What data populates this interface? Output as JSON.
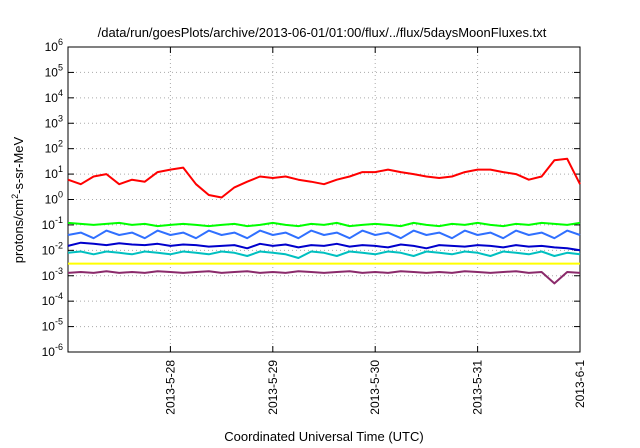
{
  "chart_data": {
    "type": "line",
    "title": "/data/run/goesPlots/archive/2013-06-01/01:00/flux/../flux/5daysMoonFluxes.txt",
    "xlabel": "Coordinated Universal Time (UTC)",
    "ylabel": "protons/cm^2-s-sr-MeV",
    "ylabel_parts": {
      "main": "protons/cm",
      "sup": "2",
      "rest": "-s-sr-MeV"
    },
    "y_scale": "log",
    "ylim": [
      1e-06,
      1000000.0
    ],
    "y_ticks": [
      {
        "exp": -6,
        "base": "10",
        "sup": "-6"
      },
      {
        "exp": -5,
        "base": "10",
        "sup": "-5"
      },
      {
        "exp": -4,
        "base": "10",
        "sup": "-4"
      },
      {
        "exp": -3,
        "base": "10",
        "sup": "-3"
      },
      {
        "exp": -2,
        "base": "10",
        "sup": "-2"
      },
      {
        "exp": -1,
        "base": "10",
        "sup": "-1"
      },
      {
        "exp": 0,
        "base": "10",
        "sup": "0"
      },
      {
        "exp": 1,
        "base": "10",
        "sup": "1"
      },
      {
        "exp": 2,
        "base": "10",
        "sup": "2"
      },
      {
        "exp": 3,
        "base": "10",
        "sup": "3"
      },
      {
        "exp": 4,
        "base": "10",
        "sup": "4"
      },
      {
        "exp": 5,
        "base": "10",
        "sup": "5"
      },
      {
        "exp": 6,
        "base": "10",
        "sup": "6"
      }
    ],
    "x_start": "2013-05-27 00:00",
    "x_end": "2013-06-01 00:00",
    "x_ticks": [
      {
        "label": "2013-5-28",
        "value": "2013-05-28 00:00"
      },
      {
        "label": "2013-5-29",
        "value": "2013-05-29 00:00"
      },
      {
        "label": "2013-5-30",
        "value": "2013-05-30 00:00"
      },
      {
        "label": "2013-5-31",
        "value": "2013-05-31 00:00"
      },
      {
        "label": "2013-6-1",
        "value": "2013-06-01 00:00"
      }
    ],
    "grid": true,
    "x": [
      "2013-05-27 00:00",
      "2013-05-27 03:00",
      "2013-05-27 06:00",
      "2013-05-27 09:00",
      "2013-05-27 12:00",
      "2013-05-27 15:00",
      "2013-05-27 18:00",
      "2013-05-27 21:00",
      "2013-05-28 00:00",
      "2013-05-28 03:00",
      "2013-05-28 06:00",
      "2013-05-28 09:00",
      "2013-05-28 12:00",
      "2013-05-28 15:00",
      "2013-05-28 18:00",
      "2013-05-28 21:00",
      "2013-05-29 00:00",
      "2013-05-29 03:00",
      "2013-05-29 06:00",
      "2013-05-29 09:00",
      "2013-05-29 12:00",
      "2013-05-29 15:00",
      "2013-05-29 18:00",
      "2013-05-29 21:00",
      "2013-05-30 00:00",
      "2013-05-30 03:00",
      "2013-05-30 06:00",
      "2013-05-30 09:00",
      "2013-05-30 12:00",
      "2013-05-30 15:00",
      "2013-05-30 18:00",
      "2013-05-30 21:00",
      "2013-05-31 00:00",
      "2013-05-31 03:00",
      "2013-05-31 06:00",
      "2013-05-31 09:00",
      "2013-05-31 12:00",
      "2013-05-31 15:00",
      "2013-05-31 18:00",
      "2013-05-31 21:00",
      "2013-06-01 00:00"
    ],
    "series": [
      {
        "color": "#ff0000",
        "values": [
          6,
          4,
          8,
          10,
          4,
          6,
          5,
          12,
          15,
          18,
          4,
          1.5,
          1.2,
          3,
          5,
          8,
          7,
          8,
          6,
          5,
          4,
          6,
          8,
          12,
          12,
          15,
          12,
          10,
          8,
          7,
          8,
          12,
          15,
          15,
          12,
          10,
          6,
          8,
          35,
          40,
          4
        ]
      },
      {
        "color": "#00ff00",
        "values": [
          0.12,
          0.11,
          0.1,
          0.11,
          0.12,
          0.1,
          0.11,
          0.09,
          0.1,
          0.11,
          0.1,
          0.09,
          0.1,
          0.11,
          0.09,
          0.1,
          0.12,
          0.1,
          0.09,
          0.11,
          0.1,
          0.12,
          0.09,
          0.1,
          0.11,
          0.1,
          0.09,
          0.12,
          0.1,
          0.09,
          0.11,
          0.1,
          0.12,
          0.1,
          0.09,
          0.11,
          0.1,
          0.12,
          0.11,
          0.1,
          0.12
        ]
      },
      {
        "color": "#3070ff",
        "values": [
          0.04,
          0.05,
          0.03,
          0.06,
          0.04,
          0.05,
          0.03,
          0.06,
          0.04,
          0.05,
          0.03,
          0.06,
          0.04,
          0.05,
          0.03,
          0.06,
          0.04,
          0.05,
          0.03,
          0.06,
          0.04,
          0.05,
          0.03,
          0.06,
          0.04,
          0.05,
          0.03,
          0.06,
          0.04,
          0.05,
          0.03,
          0.06,
          0.04,
          0.05,
          0.03,
          0.06,
          0.04,
          0.05,
          0.03,
          0.06,
          0.04
        ]
      },
      {
        "color": "#0000cc",
        "values": [
          0.015,
          0.02,
          0.018,
          0.016,
          0.019,
          0.017,
          0.016,
          0.018,
          0.015,
          0.017,
          0.016,
          0.014,
          0.015,
          0.016,
          0.012,
          0.018,
          0.015,
          0.017,
          0.013,
          0.016,
          0.015,
          0.018,
          0.014,
          0.016,
          0.015,
          0.013,
          0.017,
          0.015,
          0.012,
          0.016,
          0.015,
          0.014,
          0.016,
          0.015,
          0.013,
          0.016,
          0.014,
          0.015,
          0.013,
          0.012,
          0.01
        ]
      },
      {
        "color": "#00c0c0",
        "values": [
          0.008,
          0.009,
          0.007,
          0.009,
          0.008,
          0.007,
          0.009,
          0.008,
          0.007,
          0.009,
          0.008,
          0.007,
          0.009,
          0.008,
          0.006,
          0.009,
          0.008,
          0.007,
          0.005,
          0.009,
          0.008,
          0.006,
          0.009,
          0.008,
          0.007,
          0.009,
          0.008,
          0.006,
          0.009,
          0.008,
          0.007,
          0.009,
          0.008,
          0.006,
          0.009,
          0.008,
          0.007,
          0.009,
          0.006,
          0.008,
          0.007
        ]
      },
      {
        "color": "#ffff00",
        "values": [
          0.003,
          0.003,
          0.003,
          0.003,
          0.003,
          0.003,
          0.003,
          0.003,
          0.003,
          0.003,
          0.003,
          0.003,
          0.003,
          0.003,
          0.003,
          0.003,
          0.003,
          0.003,
          0.003,
          0.003,
          0.003,
          0.003,
          0.003,
          0.003,
          0.003,
          0.003,
          0.003,
          0.003,
          0.003,
          0.003,
          0.003,
          0.003,
          0.003,
          0.003,
          0.003,
          0.003,
          0.003,
          0.003,
          0.003,
          0.003,
          0.003
        ]
      },
      {
        "color": "#8b2a6b",
        "values": [
          0.0013,
          0.0014,
          0.0013,
          0.0015,
          0.0013,
          0.0014,
          0.0013,
          0.0015,
          0.0014,
          0.0013,
          0.0014,
          0.0015,
          0.0013,
          0.0014,
          0.0015,
          0.0013,
          0.0014,
          0.0013,
          0.0015,
          0.0014,
          0.0013,
          0.0014,
          0.0015,
          0.0013,
          0.0014,
          0.0013,
          0.0015,
          0.0014,
          0.0013,
          0.0014,
          0.0013,
          0.0015,
          0.0014,
          0.0013,
          0.0014,
          0.0015,
          0.0013,
          0.0014,
          0.0005,
          0.0014,
          0.0013
        ]
      }
    ]
  }
}
